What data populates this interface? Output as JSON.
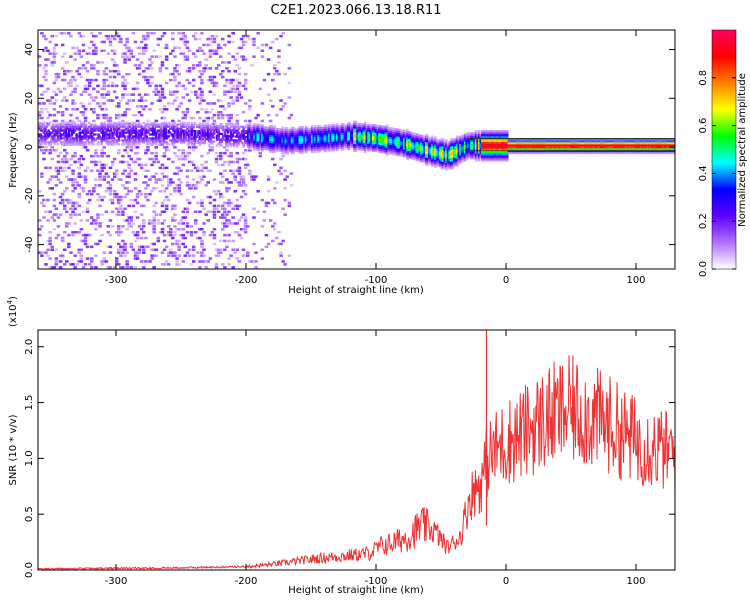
{
  "figure_title": "C2E1.2023.066.13.18.R11",
  "colors": {
    "snr_line": "#ee3333",
    "axis": "#000000",
    "background": "#ffffff"
  },
  "chart_data": [
    {
      "type": "heatmap",
      "title": "C2E1.2023.066.13.18.R11",
      "xlabel": "Height of straight line (km)",
      "ylabel": "Frequency (Hz)",
      "xlim": [
        -360,
        130
      ],
      "ylim": [
        -50,
        48
      ],
      "xticks": [
        -300,
        -200,
        -100,
        0,
        100
      ],
      "xtick_labels": [
        "-300",
        "-200",
        "-100",
        "0",
        "100"
      ],
      "yticks": [
        -40,
        -20,
        0,
        20,
        40
      ],
      "ytick_labels": [
        "-40",
        "-20",
        "0",
        "20",
        "40"
      ],
      "ridge_frequency": {
        "x": [
          -360,
          -300,
          -250,
          -200,
          -170,
          -140,
          -120,
          -100,
          -80,
          -60,
          -45,
          -30,
          0,
          50,
          100,
          130
        ],
        "y": [
          6,
          6,
          6,
          5,
          3,
          4,
          5,
          4,
          2,
          -1,
          -3,
          1,
          1,
          1,
          1,
          1
        ]
      },
      "colorbar": {
        "label": "Normalized spectral amplitude",
        "range": [
          0,
          1
        ],
        "ticks": [
          0.0,
          0.2,
          0.4,
          0.6,
          0.8
        ],
        "tick_labels": [
          "0.0",
          "0.2",
          "0.4",
          "0.6",
          "0.8"
        ],
        "colormap": [
          "#ffffff",
          "#b070ff",
          "#6000ff",
          "#0000ff",
          "#00ffff",
          "#00ff00",
          "#ffff00",
          "#ff8000",
          "#ff0000",
          "#ff0060"
        ]
      },
      "grid": false
    },
    {
      "type": "line",
      "xlabel": "Height of straight line (km)",
      "ylabel": "SNR (10 * v/v)",
      "y_multiplier_label": "(x10",
      "y_multiplier_exponent": "4",
      "y_multiplier_close": ")",
      "xlim": [
        -360,
        130
      ],
      "ylim": [
        0,
        21500
      ],
      "xticks": [
        -300,
        -200,
        -100,
        0,
        100
      ],
      "xtick_labels": [
        "-300",
        "-200",
        "-100",
        "0",
        "100"
      ],
      "yticks": [
        0,
        5000,
        10000,
        15000,
        20000
      ],
      "ytick_labels": [
        "0.0",
        "0.5",
        "1.0",
        "1.5",
        "2.0"
      ],
      "grid": false,
      "series": [
        {
          "color": "#ee3333",
          "x": [
            -360,
            -300,
            -250,
            -200,
            -180,
            -160,
            -140,
            -120,
            -105,
            -95,
            -85,
            -75,
            -65,
            -55,
            -45,
            -35,
            -28,
            -22,
            -18,
            -16,
            -14,
            -10,
            -5,
            0,
            10,
            20,
            30,
            40,
            50,
            60,
            70,
            80,
            90,
            100,
            110,
            120,
            130
          ],
          "y": [
            100,
            150,
            200,
            300,
            500,
            800,
            1100,
            1300,
            1500,
            2200,
            2500,
            3000,
            4000,
            3500,
            2000,
            3000,
            6500,
            7500,
            8000,
            9500,
            10000,
            10500,
            11000,
            11500,
            12000,
            12800,
            13500,
            14000,
            14300,
            14000,
            13500,
            13000,
            12200,
            11600,
            11200,
            10800,
            10400
          ]
        }
      ],
      "spikes": [
        {
          "x": -15,
          "y": 21500
        }
      ]
    }
  ]
}
